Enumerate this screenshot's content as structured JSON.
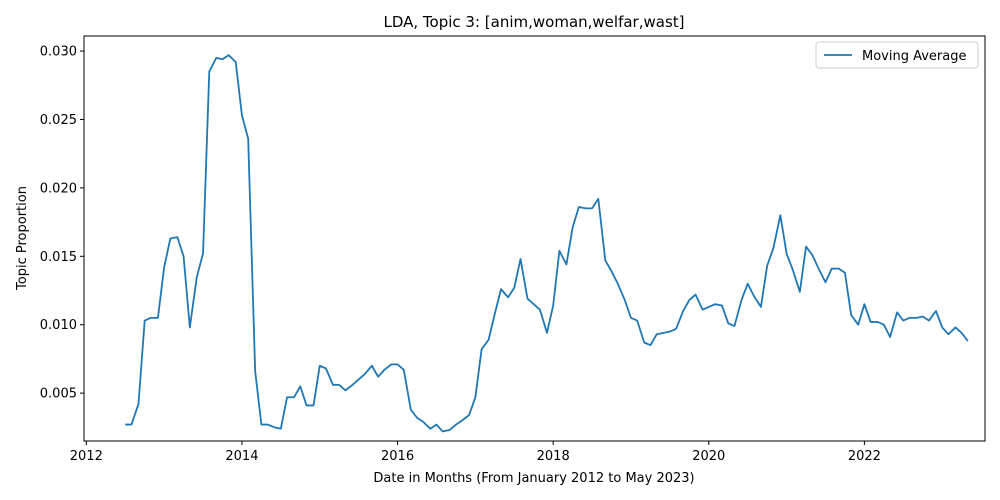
{
  "chart_data": {
    "type": "line",
    "title": "LDA, Topic 3: [anim,woman,welfar,wast]",
    "xlabel": "Date in Months (From January 2012 to May 2023)",
    "ylabel": "Topic Proportion",
    "xlim": [
      2011.97,
      2023.55
    ],
    "ylim": [
      0.0015,
      0.0311
    ],
    "x_ticks": [
      2012,
      2014,
      2016,
      2018,
      2020,
      2022
    ],
    "y_ticks": [
      0.005,
      0.01,
      0.015,
      0.02,
      0.025,
      0.03
    ],
    "y_tick_labels": [
      "0.005",
      "0.010",
      "0.015",
      "0.020",
      "0.025",
      "0.030"
    ],
    "grid": false,
    "legend": "top-right",
    "series_color": "#1f77b4",
    "series": [
      {
        "name": "Moving Average",
        "x": [
          2012.5,
          2012.58,
          2012.67,
          2012.75,
          2012.83,
          2012.92,
          2013.0,
          2013.08,
          2013.17,
          2013.25,
          2013.33,
          2013.42,
          2013.5,
          2013.58,
          2013.67,
          2013.75,
          2013.83,
          2013.92,
          2014.0,
          2014.08,
          2014.17,
          2014.25,
          2014.33,
          2014.42,
          2014.5,
          2014.58,
          2014.67,
          2014.75,
          2014.83,
          2014.92,
          2015.0,
          2015.08,
          2015.17,
          2015.25,
          2015.33,
          2015.42,
          2015.5,
          2015.58,
          2015.67,
          2015.75,
          2015.83,
          2015.92,
          2016.0,
          2016.08,
          2016.17,
          2016.25,
          2016.33,
          2016.42,
          2016.5,
          2016.58,
          2016.67,
          2016.75,
          2016.83,
          2016.92,
          2017.0,
          2017.08,
          2017.17,
          2017.25,
          2017.33,
          2017.42,
          2017.5,
          2017.58,
          2017.67,
          2017.75,
          2017.83,
          2017.92,
          2018.0,
          2018.08,
          2018.17,
          2018.25,
          2018.33,
          2018.42,
          2018.5,
          2018.58,
          2018.67,
          2018.75,
          2018.83,
          2018.92,
          2019.0,
          2019.08,
          2019.17,
          2019.25,
          2019.33,
          2019.42,
          2019.5,
          2019.58,
          2019.67,
          2019.75,
          2019.83,
          2019.92,
          2020.0,
          2020.08,
          2020.17,
          2020.25,
          2020.33,
          2020.42,
          2020.5,
          2020.58,
          2020.67,
          2020.75,
          2020.83,
          2020.92,
          2021.0,
          2021.08,
          2021.17,
          2021.25,
          2021.33,
          2021.42,
          2021.5,
          2021.58,
          2021.67,
          2021.75,
          2021.83,
          2021.92,
          2022.0,
          2022.08,
          2022.17,
          2022.25,
          2022.33,
          2022.42,
          2022.5,
          2022.58,
          2022.67,
          2022.75,
          2022.83,
          2022.92,
          2023.0,
          2023.08,
          2023.17,
          2023.25,
          2023.33
        ],
        "values": [
          0.0027,
          0.0027,
          0.0042,
          0.0103,
          0.0105,
          0.0105,
          0.0142,
          0.0163,
          0.0164,
          0.015,
          0.0098,
          0.0135,
          0.0152,
          0.0285,
          0.0295,
          0.0294,
          0.0297,
          0.0292,
          0.0253,
          0.0236,
          0.0066,
          0.0027,
          0.0027,
          0.0025,
          0.0024,
          0.0047,
          0.0047,
          0.0055,
          0.0041,
          0.0041,
          0.007,
          0.0068,
          0.0056,
          0.0056,
          0.0052,
          0.0056,
          0.006,
          0.0064,
          0.007,
          0.0062,
          0.0067,
          0.0071,
          0.0071,
          0.0067,
          0.0038,
          0.0032,
          0.0029,
          0.0024,
          0.0027,
          0.0022,
          0.0023,
          0.0027,
          0.003,
          0.0034,
          0.0047,
          0.0082,
          0.0089,
          0.0108,
          0.0126,
          0.012,
          0.0127,
          0.0148,
          0.0119,
          0.0115,
          0.0111,
          0.0094,
          0.0114,
          0.0154,
          0.0144,
          0.0171,
          0.0186,
          0.0185,
          0.0185,
          0.0192,
          0.0147,
          0.0139,
          0.013,
          0.0118,
          0.0105,
          0.0103,
          0.0087,
          0.0085,
          0.0093,
          0.0094,
          0.0095,
          0.0097,
          0.011,
          0.0118,
          0.0122,
          0.0111,
          0.0113,
          0.0115,
          0.0114,
          0.0101,
          0.0099,
          0.0118,
          0.013,
          0.0121,
          0.0113,
          0.0143,
          0.0156,
          0.018,
          0.0152,
          0.014,
          0.0124,
          0.0157,
          0.0151,
          0.014,
          0.0131,
          0.0141,
          0.0141,
          0.0138,
          0.0107,
          0.01,
          0.0115,
          0.0102,
          0.0102,
          0.01,
          0.0091,
          0.0109,
          0.0103,
          0.0105,
          0.0105,
          0.0106,
          0.0103,
          0.011,
          0.0098,
          0.0093,
          0.0098,
          0.0094,
          0.0088
        ]
      }
    ]
  }
}
